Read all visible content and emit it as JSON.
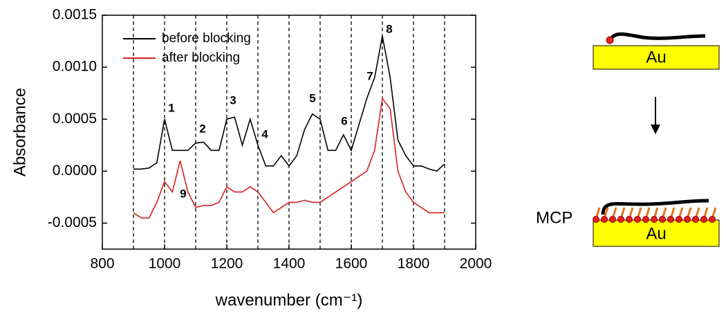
{
  "chart_data": {
    "type": "line",
    "y_label": "Absorbance",
    "x_label": "wavenumber (cm⁻¹)",
    "x": [
      900,
      925,
      950,
      975,
      1000,
      1025,
      1050,
      1075,
      1100,
      1125,
      1150,
      1175,
      1200,
      1225,
      1250,
      1275,
      1300,
      1325,
      1350,
      1375,
      1400,
      1425,
      1450,
      1475,
      1500,
      1525,
      1550,
      1575,
      1600,
      1625,
      1650,
      1675,
      1700,
      1725,
      1750,
      1775,
      1800,
      1825,
      1850,
      1875,
      1900
    ],
    "series": [
      {
        "name": "before blocking",
        "color": "#000000",
        "values": [
          2e-05,
          2e-05,
          3e-05,
          8e-05,
          0.0005,
          0.0002,
          0.0002,
          0.0002,
          0.00027,
          0.00028,
          0.0002,
          0.0002,
          0.0005,
          0.00052,
          0.00025,
          0.0005,
          0.00025,
          5e-05,
          5e-05,
          0.00015,
          5e-05,
          0.00015,
          0.0004,
          0.00055,
          0.0005,
          0.0002,
          0.0002,
          0.00035,
          0.0002,
          0.00045,
          0.0007,
          0.0009,
          0.0013,
          0.0009,
          0.0003,
          0.00015,
          5e-05,
          5e-05,
          2e-05,
          0.0,
          7e-05
        ]
      },
      {
        "name": "after blocking",
        "color": "#d62020",
        "values": [
          -0.0004,
          -0.00045,
          -0.00045,
          -0.0003,
          -0.0001,
          -0.0002,
          0.0001,
          -0.0002,
          -0.00035,
          -0.00033,
          -0.00033,
          -0.0003,
          -0.00015,
          -0.0002,
          -0.0002,
          -0.00015,
          -0.0002,
          -0.0003,
          -0.0004,
          -0.00035,
          -0.0003,
          -0.0003,
          -0.00028,
          -0.0003,
          -0.0003,
          -0.00025,
          -0.0002,
          -0.00015,
          -0.0001,
          -5e-05,
          0.0,
          0.0002,
          0.0007,
          0.0006,
          0.0,
          -0.0002,
          -0.0003,
          -0.00035,
          -0.0004,
          -0.0004,
          -0.0004
        ]
      }
    ],
    "xlim": [
      800,
      2000
    ],
    "xticks": [
      800,
      1000,
      1200,
      1400,
      1600,
      1800,
      2000
    ],
    "ylim": [
      -0.00075,
      0.0015
    ],
    "yticks": [
      {
        "value": -0.0005,
        "label": "-0.0005"
      },
      {
        "value": 0,
        "label": "0.0000"
      },
      {
        "value": 0.0005,
        "label": "0.0005"
      },
      {
        "value": 0.001,
        "label": "0.0010"
      },
      0.0015
    ],
    "dashed_lines_x": [
      900,
      1000,
      1100,
      1200,
      1300,
      1400,
      1500,
      1600,
      1700,
      1800,
      1900
    ],
    "legend": "upper left",
    "annotations": [
      "1",
      "2",
      "3",
      "4",
      "5",
      "6",
      "7",
      "8",
      "9"
    ]
  },
  "diagram": {
    "top_label": "Au",
    "bottom_label": "Au",
    "layer_label": "MCP"
  }
}
